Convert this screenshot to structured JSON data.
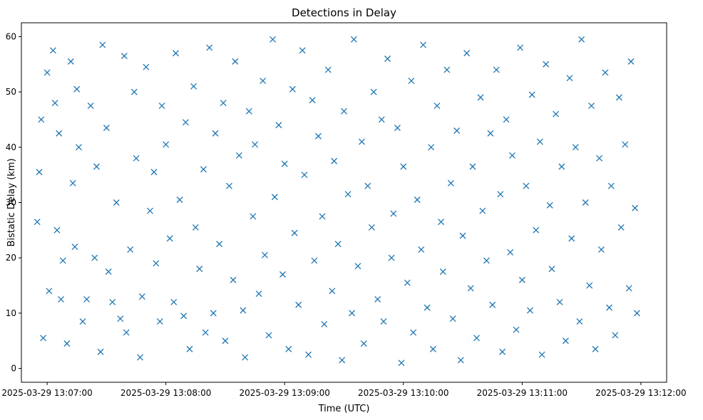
{
  "chart_data": {
    "type": "scatter",
    "title": "Detections in Delay",
    "xlabel": "Time (UTC)",
    "ylabel": "Bistatic Delay (km)",
    "x_ticks": [
      "2025-03-29 13:07:00",
      "2025-03-29 13:08:00",
      "2025-03-29 13:09:00",
      "2025-03-29 13:10:00",
      "2025-03-29 13:11:00",
      "2025-03-29 13:12:00"
    ],
    "y_ticks": [
      0,
      10,
      20,
      30,
      40,
      50,
      60
    ],
    "xlim": [
      "2025-03-29 13:06:47",
      "2025-03-29 13:12:13"
    ],
    "ylim": [
      -2.5,
      62.5
    ],
    "marker": "x",
    "color": "#1f77b4",
    "grid": false,
    "series": [
      {
        "x": [
          "13:06:55",
          "13:06:56",
          "13:06:57",
          "13:06:58",
          "13:07:00",
          "13:07:01",
          "13:07:03",
          "13:07:04",
          "13:07:05",
          "13:07:06",
          "13:07:07",
          "13:07:08",
          "13:07:10",
          "13:07:12",
          "13:07:13",
          "13:07:14",
          "13:07:15",
          "13:07:16",
          "13:07:18",
          "13:07:20",
          "13:07:22",
          "13:07:24",
          "13:07:25",
          "13:07:27",
          "13:07:28",
          "13:07:30",
          "13:07:31",
          "13:07:33",
          "13:07:35",
          "13:07:37",
          "13:07:39",
          "13:07:40",
          "13:07:42",
          "13:07:44",
          "13:07:45",
          "13:07:47",
          "13:07:48",
          "13:07:50",
          "13:07:52",
          "13:07:54",
          "13:07:55",
          "13:07:57",
          "13:07:58",
          "13:08:00",
          "13:08:02",
          "13:08:04",
          "13:08:05",
          "13:08:07",
          "13:08:09",
          "13:08:10",
          "13:08:12",
          "13:08:14",
          "13:08:15",
          "13:08:17",
          "13:08:19",
          "13:08:20",
          "13:08:22",
          "13:08:24",
          "13:08:25",
          "13:08:27",
          "13:08:29",
          "13:08:30",
          "13:08:32",
          "13:08:34",
          "13:08:35",
          "13:08:37",
          "13:08:39",
          "13:08:40",
          "13:08:42",
          "13:08:44",
          "13:08:45",
          "13:08:47",
          "13:08:49",
          "13:08:50",
          "13:08:52",
          "13:08:54",
          "13:08:55",
          "13:08:57",
          "13:08:59",
          "13:09:00",
          "13:09:02",
          "13:09:04",
          "13:09:05",
          "13:09:07",
          "13:09:09",
          "13:09:10",
          "13:09:12",
          "13:09:14",
          "13:09:15",
          "13:09:17",
          "13:09:19",
          "13:09:20",
          "13:09:22",
          "13:09:24",
          "13:09:25",
          "13:09:27",
          "13:09:29",
          "13:09:30",
          "13:09:32",
          "13:09:34",
          "13:09:35",
          "13:09:37",
          "13:09:39",
          "13:09:40",
          "13:09:42",
          "13:09:44",
          "13:09:45",
          "13:09:47",
          "13:09:49",
          "13:09:50",
          "13:09:52",
          "13:09:54",
          "13:09:55",
          "13:09:57",
          "13:09:59",
          "13:10:00",
          "13:10:02",
          "13:10:04",
          "13:10:05",
          "13:10:07",
          "13:10:09",
          "13:10:10",
          "13:10:12",
          "13:10:14",
          "13:10:15",
          "13:10:17",
          "13:10:19",
          "13:10:20",
          "13:10:22",
          "13:10:24",
          "13:10:25",
          "13:10:27",
          "13:10:29",
          "13:10:30",
          "13:10:32",
          "13:10:34",
          "13:10:35",
          "13:10:37",
          "13:10:39",
          "13:10:40",
          "13:10:42",
          "13:10:44",
          "13:10:45",
          "13:10:47",
          "13:10:49",
          "13:10:50",
          "13:10:52",
          "13:10:54",
          "13:10:55",
          "13:10:57",
          "13:10:59",
          "13:11:00",
          "13:11:02",
          "13:11:04",
          "13:11:05",
          "13:11:07",
          "13:11:09",
          "13:11:10",
          "13:11:12",
          "13:11:14",
          "13:11:15",
          "13:11:17",
          "13:11:19",
          "13:11:20",
          "13:11:22",
          "13:11:24",
          "13:11:25",
          "13:11:27",
          "13:11:29",
          "13:11:30",
          "13:11:32",
          "13:11:34",
          "13:11:35",
          "13:11:37",
          "13:11:39",
          "13:11:40",
          "13:11:42",
          "13:11:44",
          "13:11:45",
          "13:11:47",
          "13:11:49",
          "13:11:50",
          "13:11:52",
          "13:11:54",
          "13:11:55",
          "13:11:57",
          "13:11:58"
        ],
        "y": [
          26.5,
          35.5,
          45.0,
          5.5,
          53.5,
          14.0,
          57.5,
          48.0,
          25.0,
          42.5,
          12.5,
          19.5,
          4.5,
          55.5,
          33.5,
          22.0,
          50.5,
          40.0,
          8.5,
          12.5,
          47.5,
          20.0,
          36.5,
          3.0,
          58.5,
          43.5,
          17.5,
          12.0,
          30.0,
          9.0,
          56.5,
          6.5,
          21.5,
          50.0,
          38.0,
          2.0,
          13.0,
          54.5,
          28.5,
          35.5,
          19.0,
          8.5,
          47.5,
          40.5,
          23.5,
          12.0,
          57.0,
          30.5,
          9.5,
          44.5,
          3.5,
          51.0,
          25.5,
          18.0,
          36.0,
          6.5,
          58.0,
          10.0,
          42.5,
          22.5,
          48.0,
          5.0,
          33.0,
          16.0,
          55.5,
          38.5,
          10.5,
          2.0,
          46.5,
          27.5,
          40.5,
          13.5,
          52.0,
          20.5,
          6.0,
          59.5,
          31.0,
          44.0,
          17.0,
          37.0,
          3.5,
          50.5,
          24.5,
          11.5,
          57.5,
          35.0,
          2.5,
          48.5,
          19.5,
          42.0,
          27.5,
          8.0,
          54.0,
          14.0,
          37.5,
          22.5,
          1.5,
          46.5,
          31.5,
          10.0,
          59.5,
          18.5,
          41.0,
          4.5,
          33.0,
          25.5,
          50.0,
          12.5,
          45.0,
          8.5,
          56.0,
          20.0,
          28.0,
          43.5,
          1.0,
          36.5,
          15.5,
          52.0,
          6.5,
          30.5,
          21.5,
          58.5,
          11.0,
          40.0,
          3.5,
          47.5,
          26.5,
          17.5,
          54.0,
          33.5,
          9.0,
          43.0,
          1.5,
          24.0,
          57.0,
          14.5,
          36.5,
          5.5,
          49.0,
          28.5,
          19.5,
          42.5,
          11.5,
          54.0,
          31.5,
          3.0,
          45.0,
          21.0,
          38.5,
          7.0,
          58.0,
          16.0,
          33.0,
          10.5,
          49.5,
          25.0,
          41.0,
          2.5,
          55.0,
          29.5,
          18.0,
          46.0,
          12.0,
          36.5,
          5.0,
          52.5,
          23.5,
          40.0,
          8.5,
          59.5,
          30.0,
          15.0,
          47.5,
          3.5,
          38.0,
          21.5,
          53.5,
          11.0,
          33.0,
          6.0,
          49.0,
          25.5,
          40.5,
          14.5,
          55.5,
          29.0,
          10.0
        ]
      }
    ]
  }
}
